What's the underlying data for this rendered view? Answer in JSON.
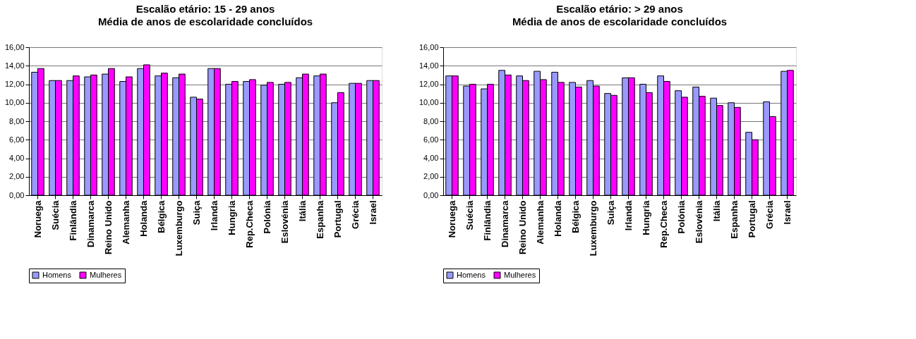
{
  "chart_data": [
    {
      "type": "bar",
      "title": "Escalão etário: 15 - 29 anos",
      "subtitle": "Média de anos de escolaridade concluídos",
      "categories": [
        "Noruega",
        "Suécia",
        "Finlândia",
        "Dinamarca",
        "Reino Unido",
        "Alemanha",
        "Holanda",
        "Bélgica",
        "Luxemburgo",
        "Suiça",
        "Irlanda",
        "Hungria",
        "Rep.Checa",
        "Polónia",
        "Eslovénia",
        "Itália",
        "Espanha",
        "Portugal",
        "Grécia",
        "Israel"
      ],
      "series": [
        {
          "name": "Homens",
          "color": "#9999ff",
          "values": [
            13.3,
            12.4,
            12.4,
            12.8,
            13.1,
            12.3,
            13.7,
            12.9,
            12.7,
            10.6,
            13.7,
            12.0,
            12.3,
            11.9,
            12.0,
            12.7,
            12.9,
            10.0,
            12.1,
            12.4
          ]
        },
        {
          "name": "Mulheres",
          "color": "#ff00ff",
          "values": [
            13.7,
            12.4,
            12.9,
            13.0,
            13.7,
            12.8,
            14.1,
            13.2,
            13.1,
            10.4,
            13.7,
            12.3,
            12.5,
            12.2,
            12.2,
            13.1,
            13.1,
            11.1,
            12.1,
            12.4
          ]
        }
      ],
      "ylim": [
        0,
        16
      ],
      "yticks": [
        {
          "value": 0,
          "label": "0,00"
        },
        {
          "value": 2,
          "label": "2,00"
        },
        {
          "value": 4,
          "label": "4,00"
        },
        {
          "value": 6,
          "label": "6,00"
        },
        {
          "value": 8,
          "label": "8,00"
        },
        {
          "value": 10,
          "label": "10,00"
        },
        {
          "value": 12,
          "label": "12,00"
        },
        {
          "value": 14,
          "label": "14,00"
        },
        {
          "value": 16,
          "label": "16,00"
        }
      ],
      "grid": "y",
      "legend": "bottom"
    },
    {
      "type": "bar",
      "title": "Escalão etário: > 29 anos",
      "subtitle": "Média de anos de escolaridade concluídos",
      "categories": [
        "Noruega",
        "Suécia",
        "Finlândia",
        "Dinamarca",
        "Reino Unido",
        "Alemanha",
        "Holanda",
        "Bélgica",
        "Luxemburgo",
        "Suiça",
        "Irlanda",
        "Hungria",
        "Rep.Checa",
        "Polónia",
        "Eslovénia",
        "Itália",
        "Espanha",
        "Portugal",
        "Grécia",
        "Israel"
      ],
      "series": [
        {
          "name": "Homens",
          "color": "#9999ff",
          "values": [
            12.9,
            11.8,
            11.5,
            13.5,
            12.9,
            13.4,
            13.3,
            12.2,
            12.4,
            11.0,
            12.7,
            12.0,
            12.9,
            11.3,
            11.7,
            10.5,
            10.0,
            6.8,
            10.1,
            13.4
          ]
        },
        {
          "name": "Mulheres",
          "color": "#ff00ff",
          "values": [
            12.9,
            12.0,
            12.0,
            13.0,
            12.4,
            12.5,
            12.2,
            11.7,
            11.8,
            10.8,
            12.7,
            11.1,
            12.3,
            10.6,
            10.7,
            9.7,
            9.5,
            6.0,
            8.5,
            13.5
          ]
        }
      ],
      "ylim": [
        0,
        16
      ],
      "yticks": [
        {
          "value": 0,
          "label": "0,00"
        },
        {
          "value": 2,
          "label": "2,00"
        },
        {
          "value": 4,
          "label": "4,00"
        },
        {
          "value": 6,
          "label": "6,00"
        },
        {
          "value": 8,
          "label": "8,00"
        },
        {
          "value": 10,
          "label": "10,00"
        },
        {
          "value": 12,
          "label": "12,00"
        },
        {
          "value": 14,
          "label": "14,00"
        },
        {
          "value": 16,
          "label": "16,00"
        }
      ],
      "grid": "y",
      "legend": "bottom"
    }
  ]
}
